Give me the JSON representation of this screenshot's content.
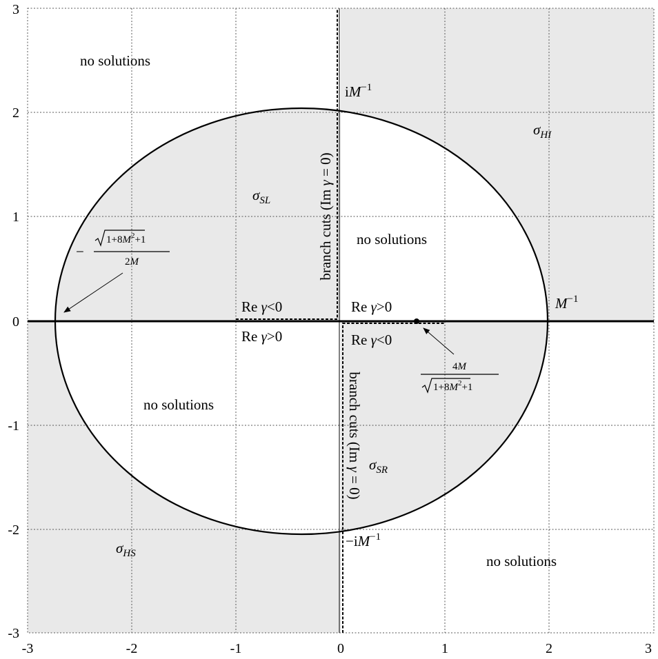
{
  "axes": {
    "x_ticks": [
      "-3",
      "-2",
      "-1",
      "0",
      "1",
      "2",
      "3"
    ],
    "y_ticks": [
      "3",
      "2",
      "1",
      "0",
      "-1",
      "-2",
      "-3"
    ],
    "xlim": [
      -3,
      3
    ],
    "ylim": [
      -3,
      3
    ],
    "grid": true
  },
  "regions": {
    "no_solutions": "no solutions",
    "sigma_sl": {
      "base": "σ",
      "sub": "SL"
    },
    "sigma_hi": {
      "base": "σ",
      "sub": "HI"
    },
    "sigma_sr": {
      "base": "σ",
      "sub": "SR"
    },
    "sigma_hs": {
      "base": "σ",
      "sub": "HS"
    }
  },
  "labels": {
    "i_m_inv": {
      "prefix": "i",
      "var": "M",
      "sup": "−1"
    },
    "neg_i_m_inv": {
      "prefix": "−i",
      "var": "M",
      "sup": "−1"
    },
    "m_inv": {
      "var": "M",
      "sup": "−1"
    },
    "re_gamma_neg": {
      "re": "Re",
      "gamma": "γ",
      "rel": "<0"
    },
    "re_gamma_pos": {
      "re": "Re",
      "gamma": "γ",
      "rel": ">0"
    },
    "branch_cuts": {
      "text": "branch cuts (Im",
      "gamma": "γ",
      "tail": " = 0)"
    },
    "left_root": {
      "sign": "−",
      "numerator": {
        "sqrt_a": "1+8",
        "var": "M",
        "sup": "2",
        "plus": "+1"
      },
      "denominator": {
        "coef": "2",
        "var": "M"
      }
    },
    "right_point": {
      "numerator": {
        "coef": "4",
        "var": "M"
      },
      "denominator": {
        "sqrt_a": "1+8",
        "var": "M",
        "sup": "2",
        "plus": "+1"
      }
    }
  },
  "colors": {
    "shade": "#e9e9e9",
    "grid": "#555555",
    "curve": "#000000"
  }
}
